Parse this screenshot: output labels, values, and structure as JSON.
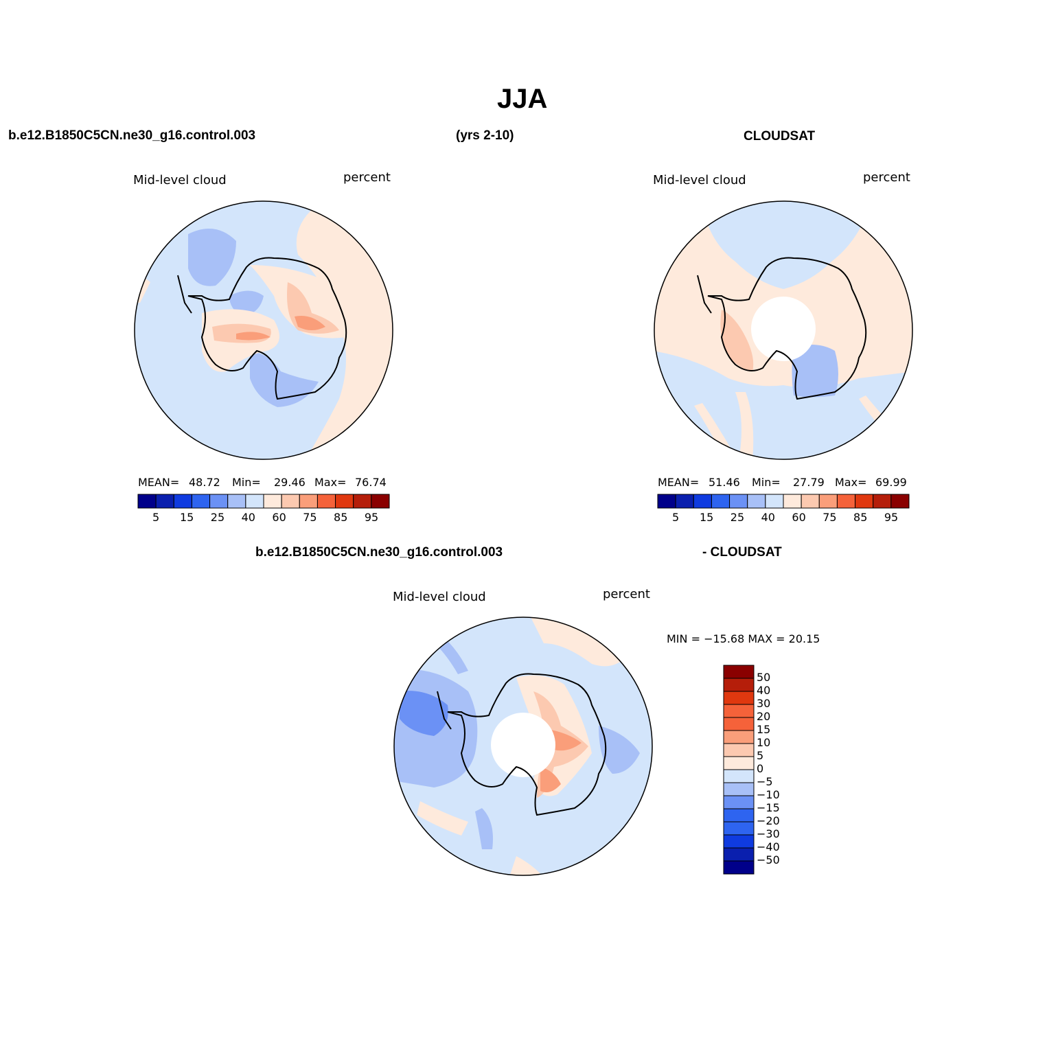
{
  "page": {
    "title": "JJA",
    "left_header": "b.e12.B1850C5CN.ne30_g16.control.003",
    "center_header": "(yrs 2-10)",
    "right_header": "CLOUDSAT",
    "diff_header_left": "b.e12.B1850C5CN.ne30_g16.control.003",
    "diff_header_right": "- CLOUDSAT"
  },
  "colors": {
    "continent_outline": "#000000",
    "missing_data": "#ffffff",
    "base_scale": [
      "#00008a",
      "#0a1fae",
      "#0f3be0",
      "#2e64f0",
      "#6b91f5",
      "#a8c0f7",
      "#d3e5fb",
      "#feeadc",
      "#fcc9b0",
      "#fa9e7a",
      "#f5623a",
      "#e0380f",
      "#b51e0a",
      "#8a0000"
    ],
    "diff_scale": [
      "#00008a",
      "#0a1fae",
      "#0f3be0",
      "#2e64f0",
      "#6b91f5",
      "#a8c0f7",
      "#d3e5fb",
      "#feeadc",
      "#fcc9b0",
      "#fa9e7a",
      "#f5623a",
      "#e0380f",
      "#b51e0a",
      "#8a0000"
    ]
  },
  "panels": {
    "model": {
      "variable": "Mid-level cloud",
      "units": "percent",
      "stats": {
        "mean_label": "MEAN=",
        "mean": "48.72",
        "min_label": "Min=",
        "min": "29.46",
        "max_label": "Max=",
        "max": "76.74"
      },
      "colorbar_labels": [
        "5",
        "15",
        "25",
        "40",
        "60",
        "75",
        "85",
        "95"
      ]
    },
    "obs": {
      "variable": "Mid-level cloud",
      "units": "percent",
      "stats": {
        "mean_label": "MEAN=",
        "mean": "51.46",
        "min_label": "Min=",
        "min": "27.79",
        "max_label": "Max=",
        "max": "69.99"
      },
      "colorbar_labels": [
        "5",
        "15",
        "25",
        "40",
        "60",
        "75",
        "85",
        "95"
      ]
    },
    "diff": {
      "variable": "Mid-level cloud",
      "units": "percent",
      "range_text": "MIN = −15.68 MAX =  20.15",
      "colorbar_labels": [
        "50",
        "40",
        "30",
        "20",
        "15",
        "10",
        "5",
        "0",
        "−5",
        "−10",
        "−15",
        "−20",
        "−30",
        "−40",
        "−50"
      ]
    }
  }
}
